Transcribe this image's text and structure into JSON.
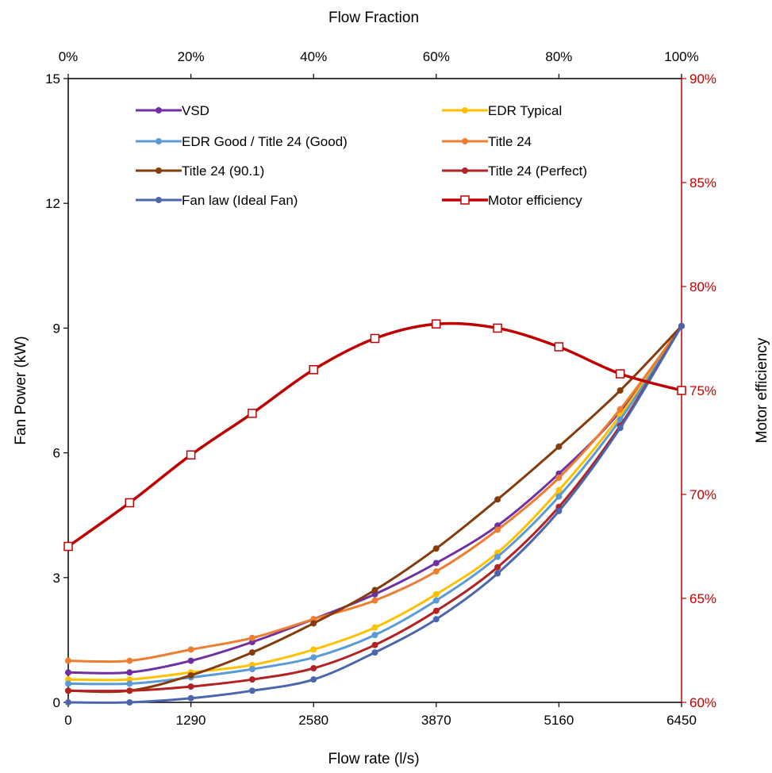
{
  "chart_data": {
    "type": "line",
    "top_axis_title": "Flow Fraction",
    "xlabel": "Flow rate (l/s)",
    "ylabel": "Fan Power (kW)",
    "y2label": "Motor efficiency",
    "x": [
      0,
      645,
      1290,
      1935,
      2580,
      3225,
      3870,
      4515,
      5160,
      5805,
      6450
    ],
    "xlim": [
      0,
      6450
    ],
    "x_ticks": [
      "0",
      "1290",
      "2580",
      "3870",
      "5160",
      "6450"
    ],
    "x_tick_values": [
      0,
      1290,
      2580,
      3870,
      5160,
      6450
    ],
    "top_ticks": [
      "0%",
      "20%",
      "40%",
      "60%",
      "80%",
      "100%"
    ],
    "ylim": [
      0,
      15
    ],
    "y_ticks": [
      "0",
      "3",
      "6",
      "9",
      "12",
      "15"
    ],
    "y_tick_values": [
      0,
      3,
      6,
      9,
      12,
      15
    ],
    "y2lim": [
      60,
      90
    ],
    "y2_ticks": [
      "60%",
      "65%",
      "70%",
      "75%",
      "80%",
      "85%",
      "90%"
    ],
    "y2_tick_values": [
      60,
      65,
      70,
      75,
      80,
      85,
      90
    ],
    "legend_position": "top",
    "grid": false,
    "series": [
      {
        "name": "VSD",
        "color": "#7030a0",
        "axis": "left",
        "marker": "circle",
        "values": [
          0.72,
          0.72,
          1.0,
          1.45,
          2.0,
          2.6,
          3.35,
          4.25,
          5.5,
          7.0,
          9.05
        ]
      },
      {
        "name": "EDR Typical",
        "color": "#ffc000",
        "axis": "left",
        "marker": "circle",
        "values": [
          0.55,
          0.55,
          0.72,
          0.9,
          1.27,
          1.8,
          2.6,
          3.6,
          5.1,
          6.9,
          9.05
        ]
      },
      {
        "name": "EDR Good / Title 24 (Good)",
        "color": "#5b9bd5",
        "axis": "left",
        "marker": "circle",
        "values": [
          0.45,
          0.45,
          0.6,
          0.8,
          1.08,
          1.62,
          2.45,
          3.5,
          4.95,
          6.8,
          9.05
        ]
      },
      {
        "name": "Title 24",
        "color": "#ed7d31",
        "axis": "left",
        "marker": "circle",
        "values": [
          1.0,
          1.0,
          1.27,
          1.55,
          2.0,
          2.45,
          3.15,
          4.15,
          5.4,
          7.05,
          9.05
        ]
      },
      {
        "name": "Title 24 (90.1)",
        "color": "#843c0c",
        "axis": "left",
        "marker": "circle",
        "values": [
          0.28,
          0.28,
          0.65,
          1.2,
          1.9,
          2.7,
          3.7,
          4.88,
          6.15,
          7.5,
          9.05
        ]
      },
      {
        "name": "Title 24 (Perfect)",
        "color": "#b22222",
        "axis": "left",
        "marker": "circle",
        "values": [
          0.28,
          0.28,
          0.38,
          0.55,
          0.82,
          1.38,
          2.2,
          3.25,
          4.7,
          6.65,
          9.05
        ]
      },
      {
        "name": "Fan law (Ideal Fan)",
        "color": "#4a66ac",
        "axis": "left",
        "marker": "circle",
        "values": [
          0.0,
          0.0,
          0.1,
          0.28,
          0.55,
          1.2,
          2.0,
          3.1,
          4.6,
          6.6,
          9.05
        ]
      },
      {
        "name": "Motor efficiency",
        "color": "#c00000",
        "axis": "right",
        "marker": "square",
        "values": [
          67.5,
          69.6,
          71.9,
          73.9,
          76.0,
          77.5,
          78.2,
          78.0,
          77.1,
          75.8,
          75.0
        ]
      }
    ]
  }
}
